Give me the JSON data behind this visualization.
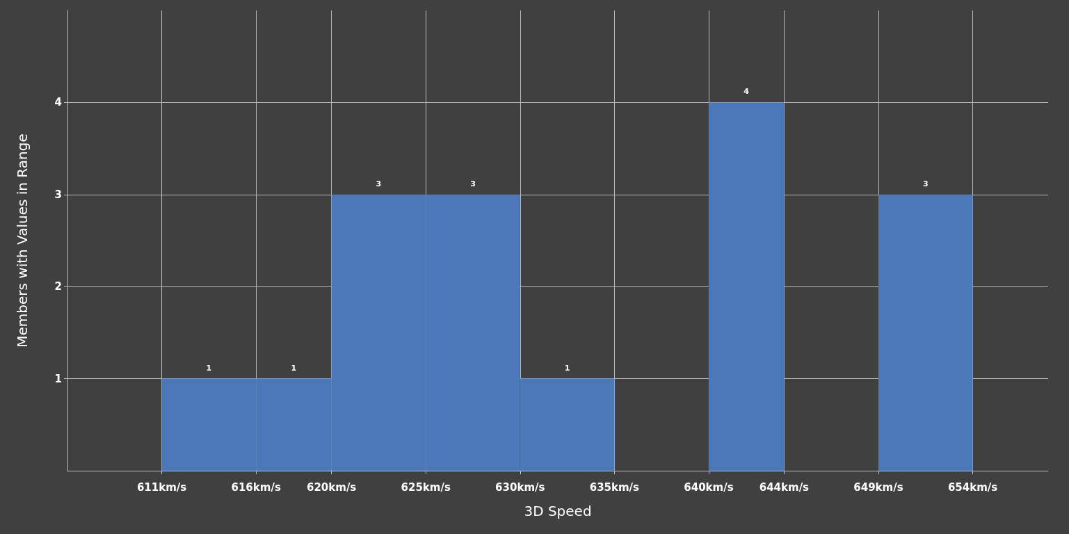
{
  "chart_data": {
    "type": "histogram",
    "xlabel": "3D Speed",
    "ylabel": "Members with Values in Range",
    "bins": [
      611,
      616,
      620,
      625,
      630,
      635,
      640,
      644,
      649,
      654
    ],
    "values": [
      1,
      1,
      3,
      3,
      1,
      0,
      4,
      0,
      3
    ],
    "value_labels": [
      "1",
      "1",
      "3",
      "3",
      "1",
      null,
      "4",
      null,
      "3"
    ],
    "color": "#4a78b9",
    "xlim": [
      606,
      658
    ],
    "xticks": [
      {
        "value": 611,
        "label": "611km/s"
      },
      {
        "value": 616,
        "label": "616km/s"
      },
      {
        "value": 620,
        "label": "620km/s"
      },
      {
        "value": 625,
        "label": "625km/s"
      },
      {
        "value": 630,
        "label": "630km/s"
      },
      {
        "value": 635,
        "label": "635km/s"
      },
      {
        "value": 640,
        "label": "640km/s"
      },
      {
        "value": 644,
        "label": "644km/s"
      },
      {
        "value": 649,
        "label": "649km/s"
      },
      {
        "value": 654,
        "label": "654km/s"
      }
    ],
    "ylim": [
      0,
      5
    ],
    "yticks": [
      1,
      2,
      3,
      4
    ],
    "grid": true
  }
}
